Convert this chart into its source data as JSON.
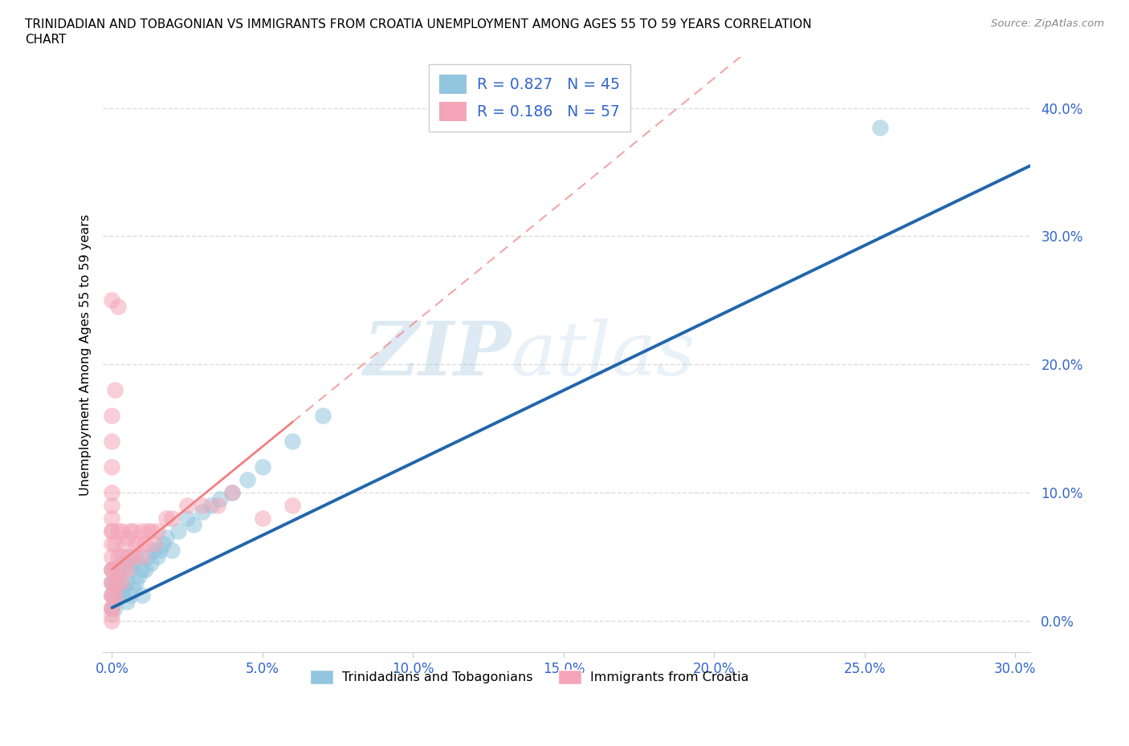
{
  "title_line1": "TRINIDADIAN AND TOBAGONIAN VS IMMIGRANTS FROM CROATIA UNEMPLOYMENT AMONG AGES 55 TO 59 YEARS CORRELATION",
  "title_line2": "CHART",
  "source": "Source: ZipAtlas.com",
  "ylabel": "Unemployment Among Ages 55 to 59 years",
  "xlim": [
    -0.003,
    0.305
  ],
  "ylim": [
    -0.025,
    0.44
  ],
  "xticks": [
    0.0,
    0.05,
    0.1,
    0.15,
    0.2,
    0.25,
    0.3
  ],
  "yticks": [
    0.0,
    0.1,
    0.2,
    0.3,
    0.4
  ],
  "xtick_labels": [
    "0.0%",
    "5.0%",
    "10.0%",
    "15.0%",
    "20.0%",
    "25.0%",
    "30.0%"
  ],
  "ytick_labels": [
    "0.0%",
    "10.0%",
    "20.0%",
    "30.0%",
    "40.0%"
  ],
  "watermark_zip": "ZIP",
  "watermark_atlas": "atlas",
  "legend_r1": "R = 0.827",
  "legend_n1": "N = 45",
  "legend_r2": "R = 0.186",
  "legend_n2": "N = 57",
  "blue_scatter_color": "#92c5de",
  "pink_scatter_color": "#f4a6b8",
  "blue_line_color": "#2166ac",
  "pink_line_color": "#f08080",
  "legend_text_color": "#3366cc",
  "axis_color": "#cccccc",
  "grid_color": "#dddddd",
  "blue_scatter_x": [
    0.0,
    0.0,
    0.0,
    0.0,
    0.001,
    0.001,
    0.002,
    0.002,
    0.003,
    0.003,
    0.004,
    0.004,
    0.005,
    0.005,
    0.005,
    0.006,
    0.006,
    0.007,
    0.007,
    0.008,
    0.008,
    0.009,
    0.01,
    0.01,
    0.011,
    0.012,
    0.013,
    0.014,
    0.015,
    0.016,
    0.017,
    0.018,
    0.02,
    0.022,
    0.025,
    0.027,
    0.03,
    0.033,
    0.036,
    0.04,
    0.045,
    0.05,
    0.06,
    0.07,
    0.255
  ],
  "blue_scatter_y": [
    0.01,
    0.02,
    0.03,
    0.04,
    0.01,
    0.03,
    0.02,
    0.04,
    0.02,
    0.03,
    0.025,
    0.045,
    0.015,
    0.03,
    0.05,
    0.02,
    0.04,
    0.025,
    0.045,
    0.03,
    0.05,
    0.035,
    0.02,
    0.04,
    0.04,
    0.05,
    0.045,
    0.055,
    0.05,
    0.055,
    0.06,
    0.065,
    0.055,
    0.07,
    0.08,
    0.075,
    0.085,
    0.09,
    0.095,
    0.1,
    0.11,
    0.12,
    0.14,
    0.16,
    0.385
  ],
  "pink_scatter_x": [
    0.0,
    0.0,
    0.0,
    0.0,
    0.0,
    0.0,
    0.0,
    0.0,
    0.0,
    0.0,
    0.0,
    0.0,
    0.0,
    0.0,
    0.0,
    0.0,
    0.0,
    0.0,
    0.0,
    0.0,
    0.001,
    0.001,
    0.001,
    0.002,
    0.002,
    0.002,
    0.003,
    0.003,
    0.003,
    0.004,
    0.004,
    0.005,
    0.005,
    0.006,
    0.006,
    0.007,
    0.007,
    0.008,
    0.009,
    0.01,
    0.01,
    0.011,
    0.012,
    0.013,
    0.014,
    0.015,
    0.018,
    0.02,
    0.025,
    0.03,
    0.035,
    0.04,
    0.05,
    0.06,
    0.002,
    0.001,
    0.0
  ],
  "pink_scatter_y": [
    0.0,
    0.005,
    0.01,
    0.01,
    0.02,
    0.02,
    0.03,
    0.03,
    0.04,
    0.04,
    0.05,
    0.06,
    0.07,
    0.07,
    0.08,
    0.09,
    0.1,
    0.12,
    0.14,
    0.16,
    0.02,
    0.04,
    0.06,
    0.03,
    0.05,
    0.07,
    0.03,
    0.05,
    0.07,
    0.04,
    0.06,
    0.04,
    0.065,
    0.05,
    0.07,
    0.05,
    0.07,
    0.06,
    0.06,
    0.05,
    0.07,
    0.06,
    0.07,
    0.07,
    0.06,
    0.07,
    0.08,
    0.08,
    0.09,
    0.09,
    0.09,
    0.1,
    0.08,
    0.09,
    0.245,
    0.18,
    0.25
  ],
  "blue_line_x0": 0.0,
  "blue_line_x1": 0.305,
  "blue_line_y0": 0.01,
  "blue_line_y1": 0.355,
  "pink_line_x0": 0.0,
  "pink_line_x1": 0.06,
  "pink_line_y0": 0.04,
  "pink_line_y1": 0.155
}
